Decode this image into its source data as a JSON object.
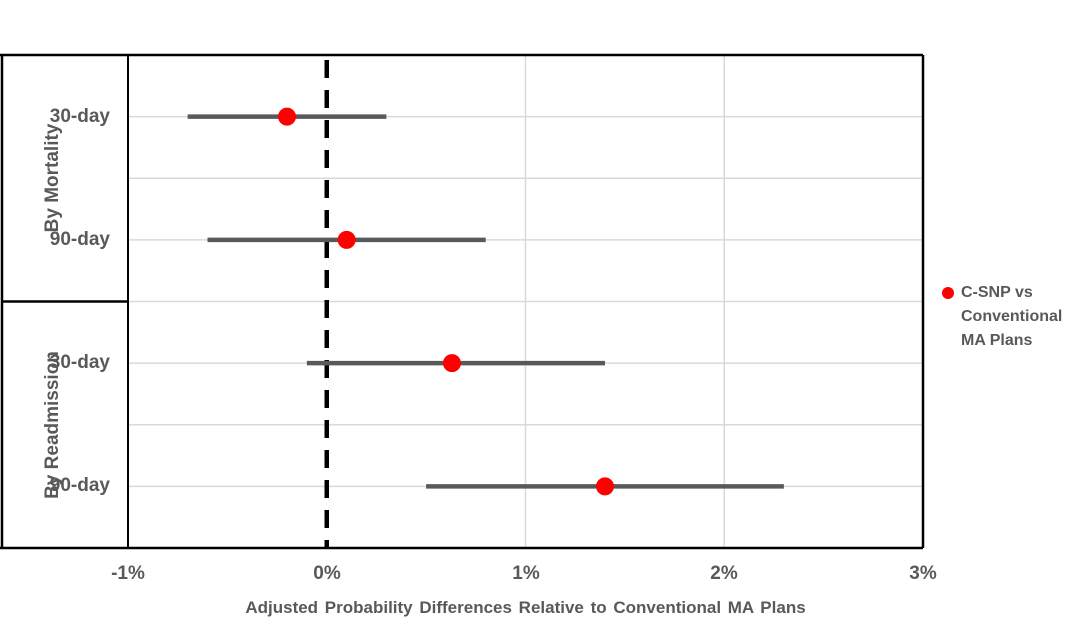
{
  "chart_data": {
    "type": "scatter",
    "subtype": "forest-dot-whisker",
    "title": "",
    "xlabel": "Adjusted Probability Differences Relative to Conventional MA Plans",
    "ylabel": "",
    "xlim": [
      -1,
      3
    ],
    "x_tick_values": [
      -1,
      0,
      1,
      2,
      3
    ],
    "x_tick_labels": [
      "-1%",
      "0%",
      "1%",
      "2%",
      "3%"
    ],
    "grid": true,
    "reference_line": {
      "x": 0,
      "style": "dashed",
      "color": "#000000"
    },
    "legend": {
      "position": "right",
      "marker": "circle",
      "marker_color": "#FF0000",
      "label": "C-SNP vs Conventional MA Plans",
      "lines": [
        "C-SNP vs",
        "Conventional",
        "MA Plans"
      ]
    },
    "groups": [
      {
        "label": "By Mortality",
        "rows": [
          {
            "label": "30-day",
            "value": -0.2,
            "ci_low": -0.7,
            "ci_high": 0.3,
            "unit": "%"
          },
          {
            "label": "90-day",
            "value": 0.1,
            "ci_low": -0.6,
            "ci_high": 0.8,
            "unit": "%"
          }
        ]
      },
      {
        "label": "By Readmission",
        "rows": [
          {
            "label": "30-day",
            "value": 0.63,
            "ci_low": -0.1,
            "ci_high": 1.4,
            "unit": "%"
          },
          {
            "label": "90-day",
            "value": 1.4,
            "ci_low": 0.5,
            "ci_high": 2.3,
            "unit": "%"
          }
        ]
      }
    ],
    "colors": {
      "point": "#FF0000",
      "error_bar": "#595959",
      "gridline": "#D9D9D9",
      "axis_line": "#000000",
      "text": "#595959"
    }
  }
}
